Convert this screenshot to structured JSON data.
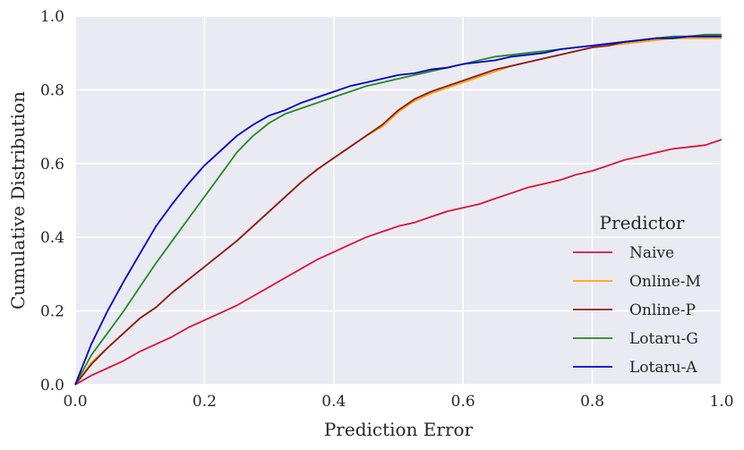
{
  "chart_data": {
    "type": "line",
    "xlabel": "Prediction Error",
    "ylabel": "Cumulative Distribution",
    "xlim": [
      0,
      1
    ],
    "ylim": [
      0,
      1
    ],
    "xticks": [
      "0.0",
      "0.2",
      "0.4",
      "0.6",
      "0.8",
      "1.0"
    ],
    "yticks": [
      "0.0",
      "0.2",
      "0.4",
      "0.6",
      "0.8",
      "1.0"
    ],
    "grid": true,
    "legend": {
      "title": "Predictor",
      "placement": "lower-right"
    },
    "x": [
      0,
      0.025,
      0.05,
      0.075,
      0.1,
      0.125,
      0.15,
      0.175,
      0.2,
      0.225,
      0.25,
      0.275,
      0.3,
      0.325,
      0.35,
      0.375,
      0.4,
      0.425,
      0.45,
      0.475,
      0.5,
      0.525,
      0.55,
      0.575,
      0.6,
      0.625,
      0.65,
      0.675,
      0.7,
      0.725,
      0.75,
      0.775,
      0.8,
      0.825,
      0.85,
      0.875,
      0.9,
      0.925,
      0.95,
      0.975,
      1.0
    ],
    "series": [
      {
        "name": "Naive",
        "color": "#dc143c",
        "values": [
          0.0,
          0.025,
          0.045,
          0.065,
          0.09,
          0.11,
          0.13,
          0.155,
          0.175,
          0.195,
          0.215,
          0.24,
          0.265,
          0.29,
          0.315,
          0.34,
          0.36,
          0.38,
          0.4,
          0.415,
          0.43,
          0.44,
          0.455,
          0.47,
          0.48,
          0.49,
          0.505,
          0.52,
          0.535,
          0.545,
          0.555,
          0.57,
          0.58,
          0.595,
          0.61,
          0.62,
          0.63,
          0.64,
          0.645,
          0.65,
          0.665
        ]
      },
      {
        "name": "Online-M",
        "color": "#ffa500",
        "values": [
          0.0,
          0.06,
          0.1,
          0.14,
          0.18,
          0.21,
          0.25,
          0.285,
          0.32,
          0.355,
          0.39,
          0.43,
          0.47,
          0.51,
          0.55,
          0.585,
          0.615,
          0.645,
          0.675,
          0.7,
          0.74,
          0.77,
          0.79,
          0.805,
          0.82,
          0.835,
          0.85,
          0.865,
          0.875,
          0.885,
          0.895,
          0.905,
          0.915,
          0.92,
          0.925,
          0.93,
          0.935,
          0.94,
          0.94,
          0.94,
          0.94
        ]
      },
      {
        "name": "Online-P",
        "color": "#8b1a1a",
        "values": [
          0.0,
          0.055,
          0.1,
          0.14,
          0.18,
          0.21,
          0.25,
          0.285,
          0.32,
          0.355,
          0.39,
          0.43,
          0.47,
          0.51,
          0.55,
          0.585,
          0.615,
          0.645,
          0.675,
          0.705,
          0.745,
          0.775,
          0.795,
          0.81,
          0.825,
          0.84,
          0.855,
          0.865,
          0.875,
          0.885,
          0.895,
          0.905,
          0.915,
          0.92,
          0.93,
          0.935,
          0.94,
          0.94,
          0.945,
          0.945,
          0.945
        ]
      },
      {
        "name": "Lotaru-G",
        "color": "#228b22",
        "values": [
          0.0,
          0.08,
          0.14,
          0.2,
          0.265,
          0.33,
          0.39,
          0.45,
          0.51,
          0.57,
          0.63,
          0.675,
          0.71,
          0.735,
          0.75,
          0.765,
          0.78,
          0.795,
          0.81,
          0.82,
          0.83,
          0.84,
          0.85,
          0.86,
          0.87,
          0.88,
          0.89,
          0.895,
          0.9,
          0.905,
          0.91,
          0.915,
          0.92,
          0.925,
          0.93,
          0.935,
          0.94,
          0.945,
          0.945,
          0.95,
          0.95
        ]
      },
      {
        "name": "Lotaru-A",
        "color": "#0000cd",
        "values": [
          0.0,
          0.11,
          0.2,
          0.28,
          0.355,
          0.43,
          0.49,
          0.545,
          0.595,
          0.635,
          0.675,
          0.705,
          0.73,
          0.745,
          0.765,
          0.78,
          0.795,
          0.81,
          0.82,
          0.83,
          0.84,
          0.845,
          0.855,
          0.86,
          0.87,
          0.875,
          0.88,
          0.89,
          0.895,
          0.9,
          0.91,
          0.915,
          0.92,
          0.925,
          0.93,
          0.935,
          0.94,
          0.94,
          0.945,
          0.945,
          0.945
        ]
      }
    ]
  }
}
